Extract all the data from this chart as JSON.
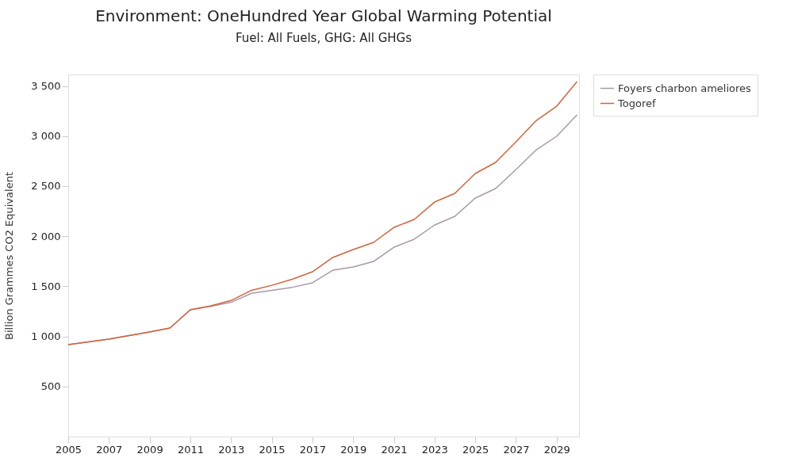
{
  "chart_data": {
    "type": "line",
    "title": "Environment: OneHundred Year Global Warming Potential",
    "subtitle": "Fuel: All Fuels, GHG: All GHGs",
    "ylabel": "Billion Grammes CO2 Equivalent",
    "x": [
      2005,
      2006,
      2007,
      2008,
      2009,
      2010,
      2011,
      2012,
      2013,
      2014,
      2015,
      2016,
      2017,
      2018,
      2019,
      2020,
      2021,
      2022,
      2023,
      2024,
      2025,
      2026,
      2027,
      2028,
      2029,
      2030
    ],
    "series": [
      {
        "name": "Foyers charbon ameliores",
        "color": "#a898a8",
        "values": [
          918,
          945,
          973,
          1008,
          1044,
          1084,
          1266,
          1300,
          1340,
          1430,
          1460,
          1490,
          1535,
          1661,
          1693,
          1748,
          1890,
          1970,
          2112,
          2199,
          2381,
          2476,
          2666,
          2863,
          2998,
          3211
        ]
      },
      {
        "name": "Togoref",
        "color": "#d0643c",
        "values": [
          918,
          945,
          973,
          1008,
          1044,
          1084,
          1266,
          1305,
          1358,
          1460,
          1510,
          1570,
          1645,
          1788,
          1867,
          1938,
          2088,
          2167,
          2341,
          2428,
          2626,
          2737,
          2943,
          3156,
          3298,
          3544
        ]
      }
    ],
    "xlim": [
      2005,
      2030.1
    ],
    "xticks": [
      2005,
      2007,
      2009,
      2011,
      2013,
      2015,
      2017,
      2019,
      2021,
      2023,
      2025,
      2027,
      2029
    ],
    "ylim": [
      0,
      3615
    ],
    "yticks": [
      500,
      {
        "value": 1000,
        "label": "1 000"
      },
      {
        "value": 1500,
        "label": "1 500"
      },
      {
        "value": 2000,
        "label": "2 000"
      },
      {
        "value": 2500,
        "label": "2 500"
      },
      {
        "value": 3000,
        "label": "3 000"
      },
      {
        "value": 3500,
        "label": "3 500"
      }
    ],
    "grid": false,
    "legend": "top right",
    "marker": "none",
    "line_style": "solid"
  }
}
